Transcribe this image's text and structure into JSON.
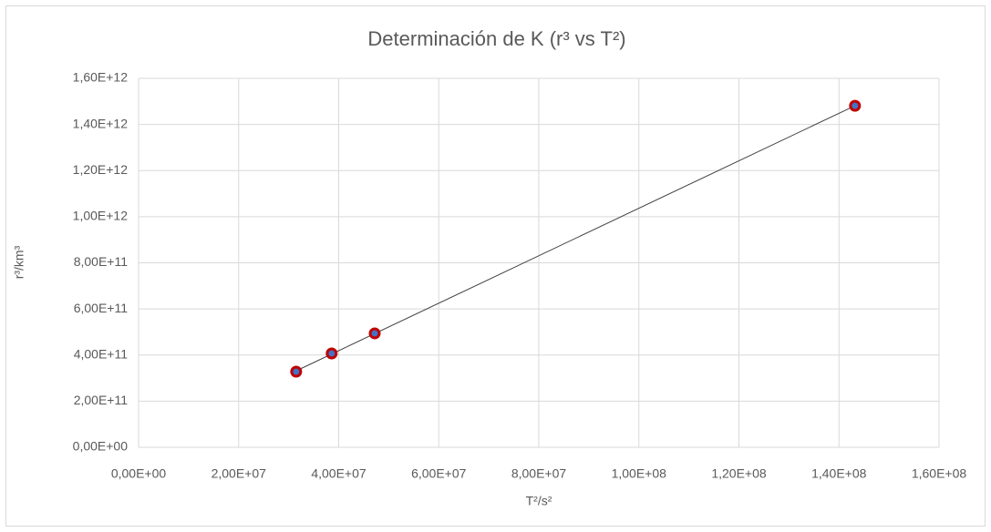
{
  "chart_data": {
    "type": "scatter",
    "title": "Determinación de K (r³ vs T²)",
    "x_label": "T²/s²",
    "y_label": "r³/km³",
    "series": [
      {
        "name": "r³ vs T²",
        "color": "#4472c4",
        "edge_color": "#c00000",
        "x": [
          31500000,
          38600000,
          47200000,
          143200000
        ],
        "values": [
          328000000000,
          407000000000,
          494000000000,
          1481000000000
        ]
      }
    ],
    "trendline": "linear",
    "trendline_color": "#404040",
    "xlim": [
      0,
      160000000
    ],
    "xticks": [
      {
        "value": 0,
        "label": "0,00E+00"
      },
      {
        "value": 20000000,
        "label": "2,00E+07"
      },
      {
        "value": 40000000,
        "label": "4,00E+07"
      },
      {
        "value": 60000000,
        "label": "6,00E+07"
      },
      {
        "value": 80000000,
        "label": "8,00E+07"
      },
      {
        "value": 100000000,
        "label": "1,00E+08"
      },
      {
        "value": 120000000,
        "label": "1,20E+08"
      },
      {
        "value": 140000000,
        "label": "1,40E+08"
      },
      {
        "value": 160000000,
        "label": "1,60E+08"
      }
    ],
    "ylim": [
      0,
      1600000000000
    ],
    "yticks": [
      {
        "value": 0,
        "label": "0,00E+00"
      },
      {
        "value": 200000000000,
        "label": "2,00E+11"
      },
      {
        "value": 400000000000,
        "label": "4,00E+11"
      },
      {
        "value": 600000000000,
        "label": "6,00E+11"
      },
      {
        "value": 800000000000,
        "label": "8,00E+11"
      },
      {
        "value": 1000000000000,
        "label": "1,00E+12"
      },
      {
        "value": 1200000000000,
        "label": "1,20E+12"
      },
      {
        "value": 1400000000000,
        "label": "1,40E+12"
      },
      {
        "value": 1600000000000,
        "label": "1,60E+12"
      }
    ],
    "grid": true
  }
}
